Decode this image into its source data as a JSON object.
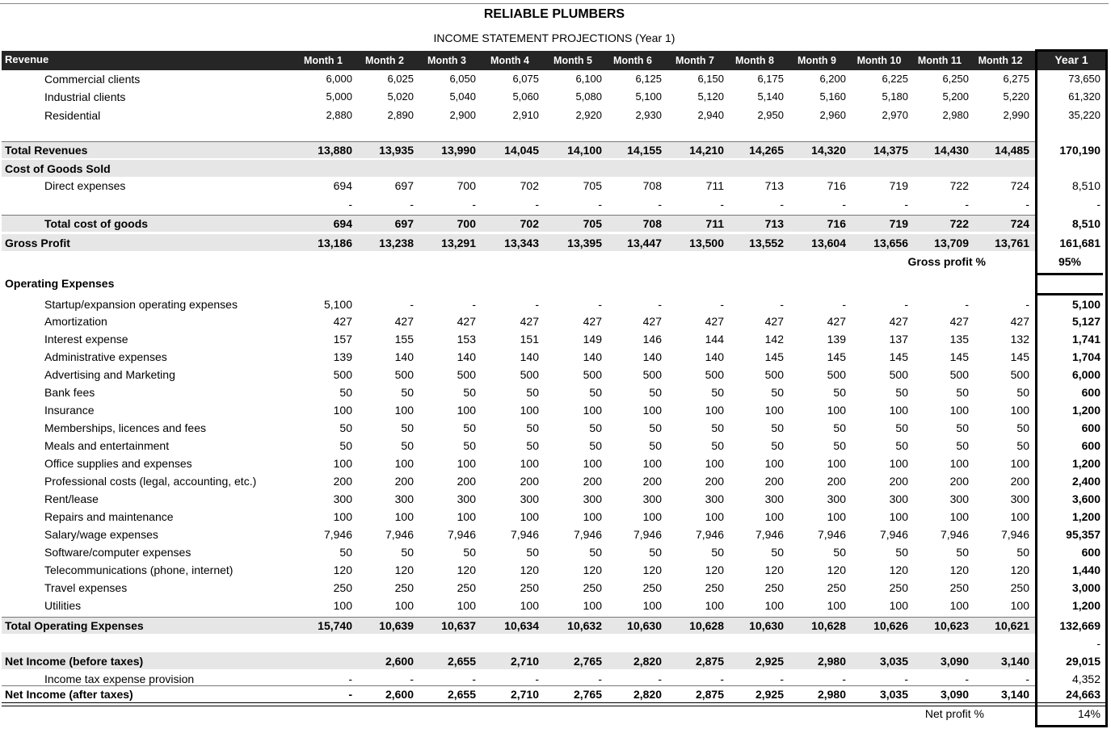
{
  "header": {
    "title": "RELIABLE PLUMBERS",
    "subtitle": "INCOME STATEMENT PROJECTIONS (Year 1)"
  },
  "table": {
    "columns": [
      "Revenue",
      "Month 1",
      "Month 2",
      "Month 3",
      "Month 4",
      "Month 5",
      "Month 6",
      "Month 7",
      "Month 8",
      "Month 9",
      "Month 10",
      "Month 11",
      "Month 12",
      "Year 1"
    ],
    "rows": [
      {
        "label": "Commercial clients",
        "values": [
          "6,000",
          "6,025",
          "6,050",
          "6,075",
          "6,100",
          "6,125",
          "6,150",
          "6,175",
          "6,200",
          "6,225",
          "6,250",
          "6,275"
        ],
        "total": "73,650"
      },
      {
        "label": "Industrial clients",
        "values": [
          "5,000",
          "5,020",
          "5,040",
          "5,060",
          "5,080",
          "5,100",
          "5,120",
          "5,140",
          "5,160",
          "5,180",
          "5,200",
          "5,220"
        ],
        "total": "61,320"
      },
      {
        "label": "Residential",
        "values": [
          "2,880",
          "2,890",
          "2,900",
          "2,910",
          "2,920",
          "2,930",
          "2,940",
          "2,950",
          "2,960",
          "2,970",
          "2,980",
          "2,990"
        ],
        "total": "35,220"
      },
      {
        "label": "Total Revenues",
        "values": [
          "13,880",
          "13,935",
          "13,990",
          "14,045",
          "14,100",
          "14,155",
          "14,210",
          "14,265",
          "14,320",
          "14,375",
          "14,430",
          "14,485"
        ],
        "total": "170,190"
      },
      {
        "label": "Cost of Goods Sold"
      },
      {
        "label": "Direct expenses",
        "values": [
          "694",
          "697",
          "700",
          "702",
          "705",
          "708",
          "711",
          "713",
          "716",
          "719",
          "722",
          "724"
        ],
        "total": "8,510"
      },
      {
        "values": [
          "-",
          "-",
          "-",
          "-",
          "-",
          "-",
          "-",
          "-",
          "-",
          "-",
          "-",
          "-"
        ],
        "total": "-"
      },
      {
        "label": "Total cost of goods",
        "values": [
          "694",
          "697",
          "700",
          "702",
          "705",
          "708",
          "711",
          "713",
          "716",
          "719",
          "722",
          "724"
        ],
        "total": "8,510"
      },
      {
        "label": "Gross Profit",
        "values": [
          "13,186",
          "13,238",
          "13,291",
          "13,343",
          "13,395",
          "13,447",
          "13,500",
          "13,552",
          "13,604",
          "13,656",
          "13,709",
          "13,761"
        ],
        "total": "161,681"
      },
      {
        "label": "Gross profit %",
        "total": "95%"
      },
      {
        "label": "Operating Expenses"
      },
      {
        "label": "Startup/expansion operating expenses",
        "values": [
          "5,100",
          "-",
          "-",
          "-",
          "-",
          "-",
          "-",
          "-",
          "-",
          "-",
          "-",
          "-"
        ],
        "total": "5,100"
      },
      {
        "label": "Amortization",
        "values": [
          "427",
          "427",
          "427",
          "427",
          "427",
          "427",
          "427",
          "427",
          "427",
          "427",
          "427",
          "427"
        ],
        "total": "5,127"
      },
      {
        "label": "Interest expense",
        "values": [
          "157",
          "155",
          "153",
          "151",
          "149",
          "146",
          "144",
          "142",
          "139",
          "137",
          "135",
          "132"
        ],
        "total": "1,741"
      },
      {
        "label": "Administrative expenses",
        "values": [
          "139",
          "140",
          "140",
          "140",
          "140",
          "140",
          "140",
          "145",
          "145",
          "145",
          "145",
          "145"
        ],
        "total": "1,704"
      },
      {
        "label": "Advertising and Marketing",
        "values": [
          "500",
          "500",
          "500",
          "500",
          "500",
          "500",
          "500",
          "500",
          "500",
          "500",
          "500",
          "500"
        ],
        "total": "6,000"
      },
      {
        "label": "Bank fees",
        "values": [
          "50",
          "50",
          "50",
          "50",
          "50",
          "50",
          "50",
          "50",
          "50",
          "50",
          "50",
          "50"
        ],
        "total": "600"
      },
      {
        "label": "Insurance",
        "values": [
          "100",
          "100",
          "100",
          "100",
          "100",
          "100",
          "100",
          "100",
          "100",
          "100",
          "100",
          "100"
        ],
        "total": "1,200"
      },
      {
        "label": "Memberships, licences and fees",
        "values": [
          "50",
          "50",
          "50",
          "50",
          "50",
          "50",
          "50",
          "50",
          "50",
          "50",
          "50",
          "50"
        ],
        "total": "600"
      },
      {
        "label": "Meals and entertainment",
        "values": [
          "50",
          "50",
          "50",
          "50",
          "50",
          "50",
          "50",
          "50",
          "50",
          "50",
          "50",
          "50"
        ],
        "total": "600"
      },
      {
        "label": "Office supplies and expenses",
        "values": [
          "100",
          "100",
          "100",
          "100",
          "100",
          "100",
          "100",
          "100",
          "100",
          "100",
          "100",
          "100"
        ],
        "total": "1,200"
      },
      {
        "label": "Professional costs (legal, accounting, etc.)",
        "values": [
          "200",
          "200",
          "200",
          "200",
          "200",
          "200",
          "200",
          "200",
          "200",
          "200",
          "200",
          "200"
        ],
        "total": "2,400"
      },
      {
        "label": "Rent/lease",
        "values": [
          "300",
          "300",
          "300",
          "300",
          "300",
          "300",
          "300",
          "300",
          "300",
          "300",
          "300",
          "300"
        ],
        "total": "3,600"
      },
      {
        "label": "Repairs and maintenance",
        "values": [
          "100",
          "100",
          "100",
          "100",
          "100",
          "100",
          "100",
          "100",
          "100",
          "100",
          "100",
          "100"
        ],
        "total": "1,200"
      },
      {
        "label": "Salary/wage expenses",
        "values": [
          "7,946",
          "7,946",
          "7,946",
          "7,946",
          "7,946",
          "7,946",
          "7,946",
          "7,946",
          "7,946",
          "7,946",
          "7,946",
          "7,946"
        ],
        "total": "95,357"
      },
      {
        "label": "Software/computer expenses",
        "values": [
          "50",
          "50",
          "50",
          "50",
          "50",
          "50",
          "50",
          "50",
          "50",
          "50",
          "50",
          "50"
        ],
        "total": "600"
      },
      {
        "label": "Telecommunications (phone, internet)",
        "values": [
          "120",
          "120",
          "120",
          "120",
          "120",
          "120",
          "120",
          "120",
          "120",
          "120",
          "120",
          "120"
        ],
        "total": "1,440"
      },
      {
        "label": "Travel expenses",
        "values": [
          "250",
          "250",
          "250",
          "250",
          "250",
          "250",
          "250",
          "250",
          "250",
          "250",
          "250",
          "250"
        ],
        "total": "3,000"
      },
      {
        "label": "Utilities",
        "values": [
          "100",
          "100",
          "100",
          "100",
          "100",
          "100",
          "100",
          "100",
          "100",
          "100",
          "100",
          "100"
        ],
        "total": "1,200"
      },
      {
        "label": "Total Operating Expenses",
        "values": [
          "15,740",
          "10,639",
          "10,637",
          "10,634",
          "10,632",
          "10,630",
          "10,628",
          "10,630",
          "10,628",
          "10,626",
          "10,623",
          "10,621"
        ],
        "total": "132,669"
      },
      {
        "total": "-"
      },
      {
        "label": "Net Income (before taxes)",
        "values": [
          null,
          "2,600",
          "2,655",
          "2,710",
          "2,765",
          "2,820",
          "2,875",
          "2,925",
          "2,980",
          "3,035",
          "3,090",
          "3,140"
        ],
        "total": "29,015"
      },
      {
        "label": "Income tax expense provision",
        "values": [
          "-",
          "-",
          "-",
          "-",
          "-",
          "-",
          "-",
          "-",
          "-",
          "-",
          "-",
          "-"
        ],
        "total": "4,352"
      },
      {
        "label": "Net Income (after taxes)",
        "values": [
          "-",
          "2,600",
          "2,655",
          "2,710",
          "2,765",
          "2,820",
          "2,875",
          "2,925",
          "2,980",
          "3,035",
          "3,090",
          "3,140"
        ],
        "total": "24,663"
      },
      {
        "label": "Net profit %",
        "total": "14%"
      }
    ]
  }
}
